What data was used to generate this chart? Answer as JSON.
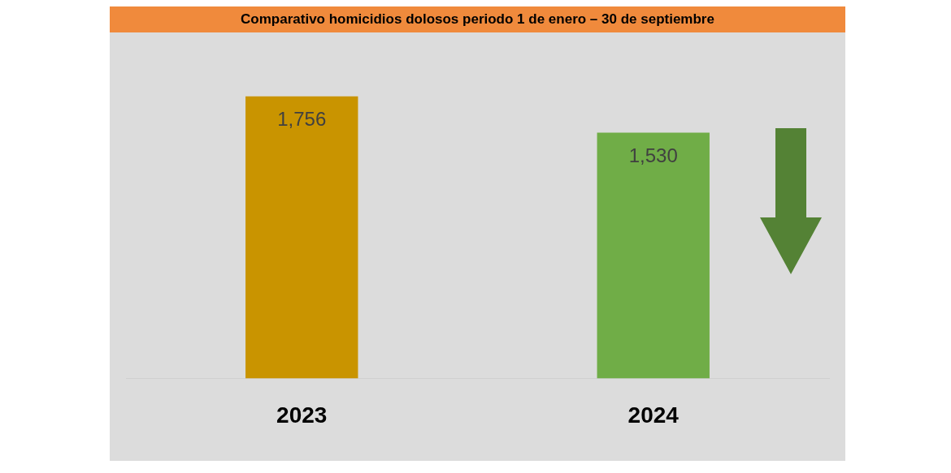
{
  "chart_data": {
    "type": "bar",
    "title": "Comparativo  homicidios dolosos periodo 1 de enero – 30 de septiembre",
    "categories": [
      "2023",
      "2024"
    ],
    "values": [
      1756,
      1530
    ],
    "colors": [
      "#c99400",
      "#70ad47"
    ],
    "value_labels": [
      "1,756",
      "1,530"
    ],
    "grid": false,
    "legend": false
  }
}
